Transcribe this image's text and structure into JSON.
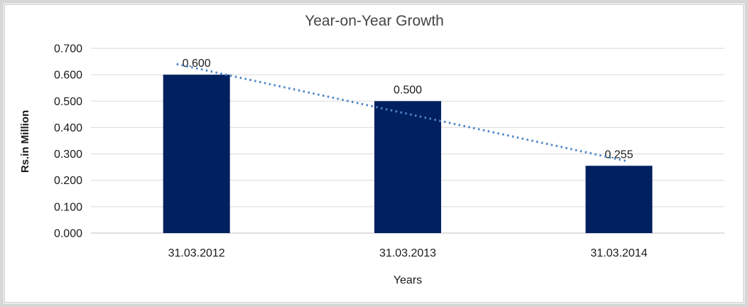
{
  "frame": {
    "outer_border_color": "#d7d7d7",
    "chart_border_color": "#c9c9c9",
    "background": "#ffffff"
  },
  "chart_data": {
    "type": "bar",
    "title": "Year-on-Year Growth",
    "categories": [
      "31.03.2012",
      "31.03.2013",
      "31.03.2014"
    ],
    "values": [
      0.6,
      0.5,
      0.255
    ],
    "data_labels": [
      "0.600",
      "0.500",
      "0.255"
    ],
    "xlabel": "Years",
    "ylabel": "Rs.in Million",
    "ylim": [
      0.0,
      0.7
    ],
    "ytick_interval": 0.1,
    "ytick_labels": [
      "0.700",
      "0.600",
      "0.500",
      "0.400",
      "0.300",
      "0.200",
      "0.100",
      "0.000"
    ],
    "grid": true,
    "legend": "none",
    "bar_color": "#002060",
    "gridline_color": "#d9d9d9",
    "axis_line_color": "#bfbfbf",
    "text_color": "#1a1a1a",
    "title_color": "#454545",
    "trendline": {
      "type": "linear",
      "style": "dotted",
      "color": "#4F86C8"
    }
  }
}
